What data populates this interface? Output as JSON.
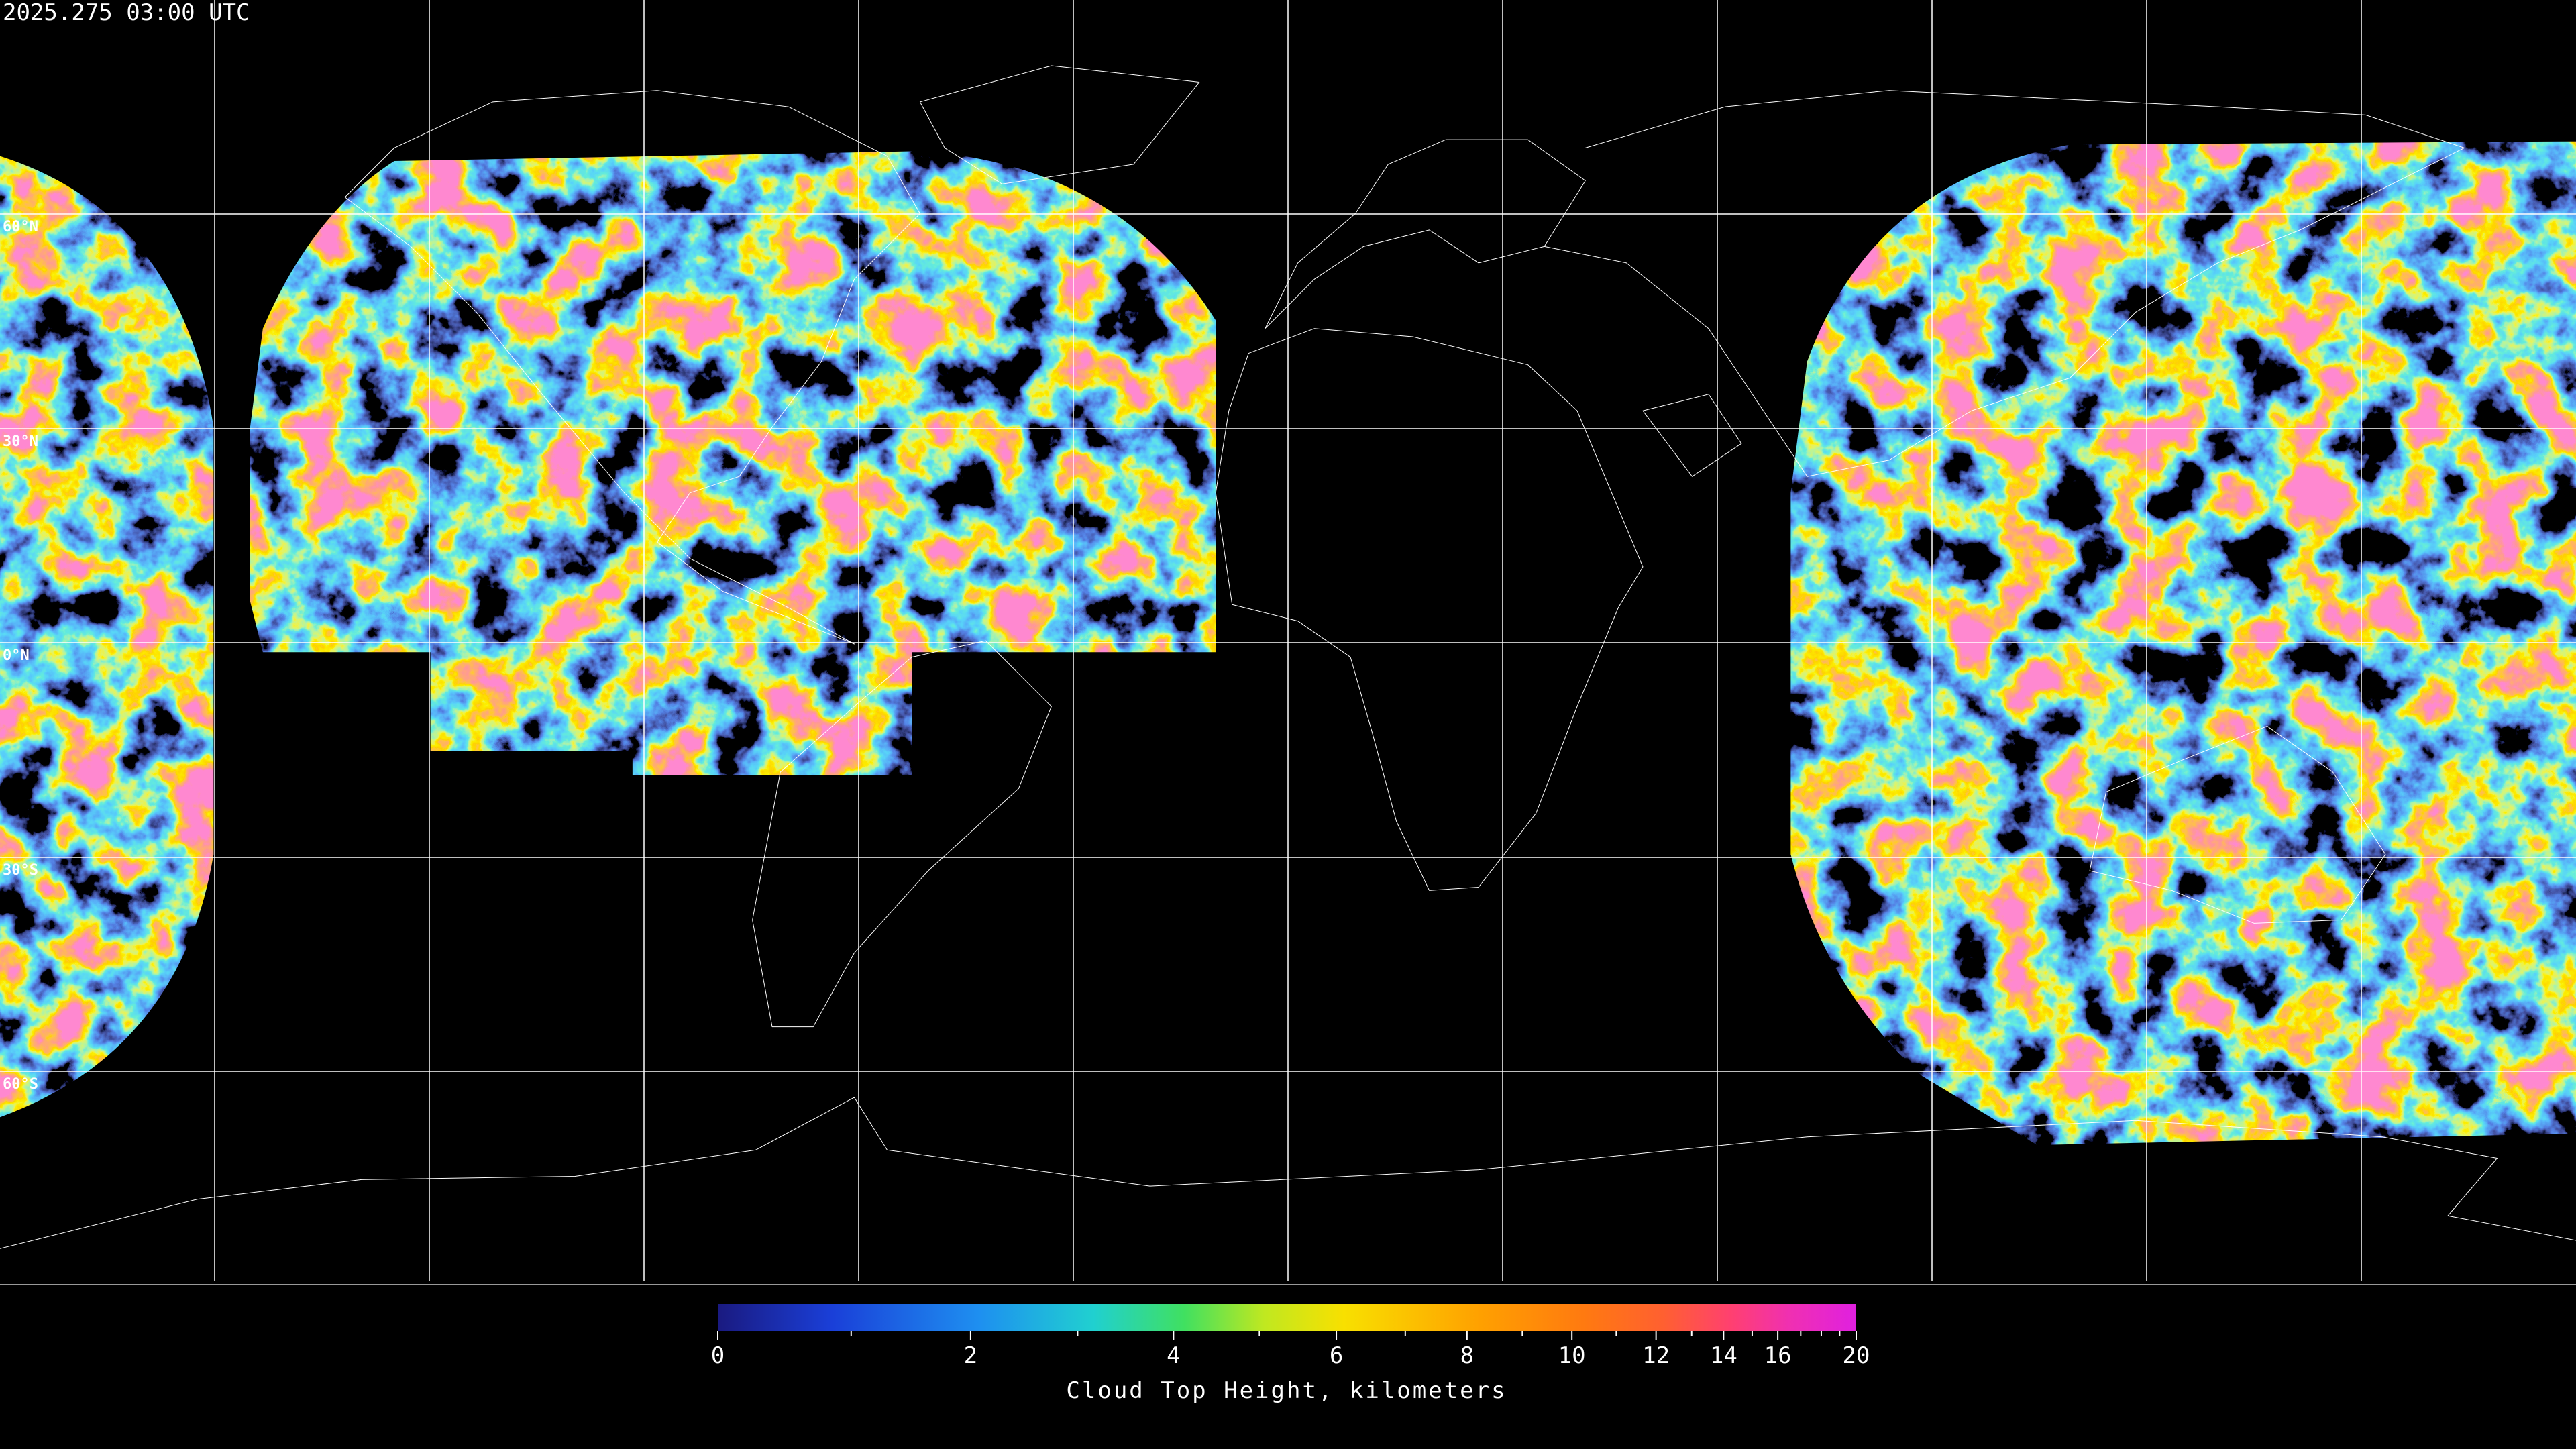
{
  "timestamp": "2025.275 03:00 UTC",
  "latitude_labels": [
    "60°N",
    "30°N",
    "0°N",
    "30°S",
    "60°S"
  ],
  "colorbar": {
    "min": 0,
    "max": 20,
    "ticks": [
      0,
      2,
      4,
      6,
      8,
      10,
      12,
      14,
      16,
      20
    ],
    "minor_ticks": [
      1,
      3,
      5,
      7,
      9,
      11,
      13,
      15,
      17,
      18,
      19
    ],
    "label": "Cloud Top Height, kilometers"
  }
}
